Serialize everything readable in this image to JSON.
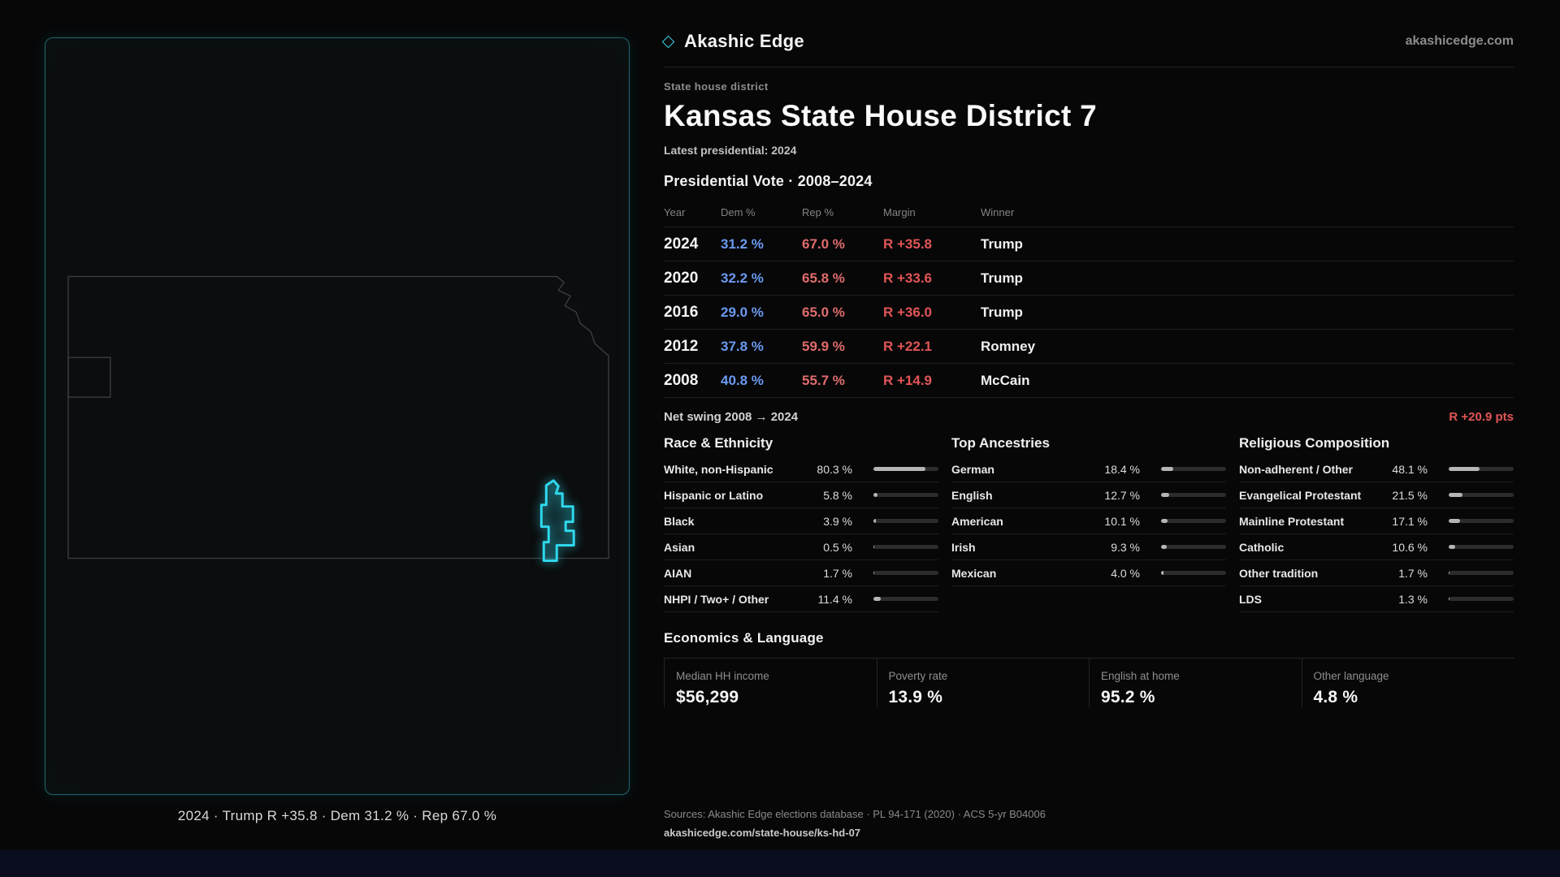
{
  "colors": {
    "accent": "#35d6ea",
    "dem_blue": "#6b9af0",
    "rep_red": "#e06c6c",
    "margin_red": "#e25555"
  },
  "brand": {
    "name": "Akashic Edge",
    "site": "akashicedge.com"
  },
  "map": {
    "region": "Kansas",
    "highlight": "State House District 7",
    "caption": "2024 · Trump R +35.8 · Dem 31.2 % · Rep 67.0 %"
  },
  "header": {
    "kicker": "State house district",
    "title": "Kansas State House District 7",
    "subtitle": "Latest presidential: 2024"
  },
  "vote_table": {
    "title": "Presidential Vote · 2008–2024",
    "columns": [
      "Year",
      "Dem %",
      "Rep %",
      "Margin",
      "Winner"
    ],
    "rows": [
      {
        "year": "2024",
        "dem": "31.2 %",
        "rep": "67.0 %",
        "margin": "R +35.8",
        "winner": "Trump"
      },
      {
        "year": "2020",
        "dem": "32.2 %",
        "rep": "65.8 %",
        "margin": "R +33.6",
        "winner": "Trump"
      },
      {
        "year": "2016",
        "dem": "29.0 %",
        "rep": "65.0 %",
        "margin": "R +36.0",
        "winner": "Trump"
      },
      {
        "year": "2012",
        "dem": "37.8 %",
        "rep": "59.9 %",
        "margin": "R +22.1",
        "winner": "Romney"
      },
      {
        "year": "2008",
        "dem": "40.8 %",
        "rep": "55.7 %",
        "margin": "R +14.9",
        "winner": "McCain"
      }
    ],
    "net_swing_label": "Net swing 2008 → 2024",
    "net_swing_value": "R +20.9 pts"
  },
  "demographics": {
    "race": {
      "title": "Race & Ethnicity",
      "rows": [
        {
          "label": "White, non-Hispanic",
          "value": "80.3 %",
          "pct": 80.3
        },
        {
          "label": "Hispanic or Latino",
          "value": "5.8 %",
          "pct": 5.8
        },
        {
          "label": "Black",
          "value": "3.9 %",
          "pct": 3.9
        },
        {
          "label": "Asian",
          "value": "0.5 %",
          "pct": 0.5
        },
        {
          "label": "AIAN",
          "value": "1.7 %",
          "pct": 1.7
        },
        {
          "label": "NHPI / Two+ / Other",
          "value": "11.4 %",
          "pct": 11.4
        }
      ]
    },
    "ancestries": {
      "title": "Top Ancestries",
      "rows": [
        {
          "label": "German",
          "value": "18.4 %",
          "pct": 18.4
        },
        {
          "label": "English",
          "value": "12.7 %",
          "pct": 12.7
        },
        {
          "label": "American",
          "value": "10.1 %",
          "pct": 10.1
        },
        {
          "label": "Irish",
          "value": "9.3 %",
          "pct": 9.3
        },
        {
          "label": "Mexican",
          "value": "4.0 %",
          "pct": 4.0
        }
      ]
    },
    "religion": {
      "title": "Religious Composition",
      "rows": [
        {
          "label": "Non-adherent / Other",
          "value": "48.1 %",
          "pct": 48.1
        },
        {
          "label": "Evangelical Protestant",
          "value": "21.5 %",
          "pct": 21.5
        },
        {
          "label": "Mainline Protestant",
          "value": "17.1 %",
          "pct": 17.1
        },
        {
          "label": "Catholic",
          "value": "10.6 %",
          "pct": 10.6
        },
        {
          "label": "Other tradition",
          "value": "1.7 %",
          "pct": 1.7
        },
        {
          "label": "LDS",
          "value": "1.3 %",
          "pct": 1.3
        }
      ]
    }
  },
  "economics": {
    "title": "Economics & Language",
    "stats": [
      {
        "label": "Median HH income",
        "value": "$56,299"
      },
      {
        "label": "Poverty rate",
        "value": "13.9 %"
      },
      {
        "label": "English at home",
        "value": "95.2 %"
      },
      {
        "label": "Other language",
        "value": "4.8 %"
      }
    ]
  },
  "footer": {
    "sources": "Sources: Akashic Edge elections database · PL 94-171 (2020) · ACS 5-yr B04006",
    "permalink": "akashicedge.com/state-house/ks-hd-07"
  }
}
